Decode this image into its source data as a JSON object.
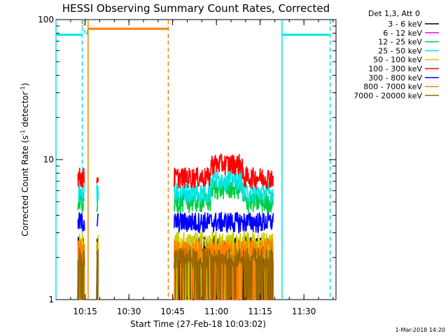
{
  "chart_data": {
    "type": "line",
    "title": "HESSI Observing Summary Count Rates, Corrected",
    "xlabel": "Start Time (27-Feb-18 10:03:02)",
    "ylabel_main": "Corrected Count Rate (s",
    "ylabel_sup1": "-1",
    "ylabel_mid": " detector",
    "ylabel_sup2": "-1",
    "ylabel_end": ")",
    "y_scale": "log",
    "ylim": [
      1,
      100
    ],
    "xlim_minutes": [
      2,
      98
    ],
    "x_ticks": [
      {
        "label": "10:15",
        "t": 12
      },
      {
        "label": "10:30",
        "t": 27
      },
      {
        "label": "10:45",
        "t": 42
      },
      {
        "label": "11:00",
        "t": 57
      },
      {
        "label": "11:15",
        "t": 72
      },
      {
        "label": "11:30",
        "t": 87
      }
    ],
    "y_ticks": [
      {
        "label": "1",
        "v": 1
      },
      {
        "label": "10",
        "v": 10
      },
      {
        "label": "100",
        "v": 100
      }
    ],
    "legend_title": "Det 1,3, Att 0",
    "legend_position": "right",
    "series": [
      {
        "name": "3 - 6 keV",
        "color": "#000000",
        "level": 2.4
      },
      {
        "name": "6 - 12 keV",
        "color": "#ff00ff",
        "level": 1.3
      },
      {
        "name": "12 - 25 keV",
        "color": "#00cc44",
        "level": 5.0
      },
      {
        "name": "25 - 50 keV",
        "color": "#00e5e5",
        "level": 5.8
      },
      {
        "name": "50 - 100 keV",
        "color": "#cccc00",
        "level": 2.6
      },
      {
        "name": "100 - 300 keV",
        "color": "#ff0000",
        "level": 7.5
      },
      {
        "name": "300 - 800 keV",
        "color": "#0000ff",
        "level": 3.6
      },
      {
        "name": "800 - 7000 keV",
        "color": "#ff8000",
        "level": 2.3
      },
      {
        "name": "7000 - 20000 keV",
        "color": "#996600",
        "level": 2.0
      }
    ],
    "data_intervals_minutes": [
      [
        9.5,
        11.8
      ],
      [
        16.0,
        16.6
      ],
      [
        42.5,
        76.5
      ]
    ],
    "markers": [
      {
        "label": "S",
        "color": "#ff8000",
        "t": 10.5,
        "v": 90
      },
      {
        "label": "N",
        "color": "#00e5e5",
        "t": 11.2,
        "v": 78
      }
    ],
    "attenuator_segments": [
      {
        "color": "#00e5e5",
        "t0": 2,
        "t1": 11.0,
        "v": 78,
        "style": "solid"
      },
      {
        "color": "#ff8000",
        "t0": 13.0,
        "t1": 40.5,
        "v": 86,
        "style": "solid"
      },
      {
        "color": "#00e5e5",
        "t0": 79.5,
        "t1": 96.0,
        "v": 78,
        "style": "solid"
      }
    ],
    "vertical_lines": [
      {
        "color": "#00e5e5",
        "t": 2,
        "style": "solid"
      },
      {
        "color": "#00e5e5",
        "t": 11.0,
        "style": "dashed"
      },
      {
        "color": "#ff8000",
        "t": 13.0,
        "style": "solid"
      },
      {
        "color": "#ff8000",
        "t": 40.5,
        "style": "dashed"
      },
      {
        "color": "#00e5e5",
        "t": 79.5,
        "style": "solid"
      },
      {
        "color": "#00e5e5",
        "t": 96.0,
        "style": "dashed"
      }
    ]
  },
  "footer": {
    "timestamp": "1-Mar-2018 14:20"
  }
}
